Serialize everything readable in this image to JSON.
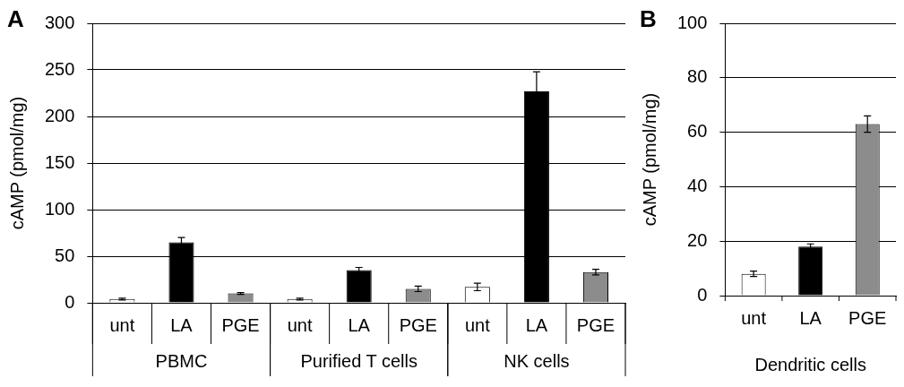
{
  "chart_data": [
    {
      "type": "bar",
      "title": "A",
      "ylabel": "cAMP (pmol/mg)",
      "categories": [
        "unt",
        "LA",
        "PGE",
        "unt",
        "LA",
        "PGE",
        "unt",
        "LA",
        "PGE"
      ],
      "values": [
        4,
        65,
        10,
        4,
        35,
        15,
        17,
        227,
        33
      ],
      "errors": [
        1,
        5,
        1,
        1,
        3,
        3,
        4,
        21,
        3
      ],
      "colors": [
        "#ffffff",
        "#000000",
        "#8c8c8c",
        "#ffffff",
        "#000000",
        "#8c8c8c",
        "#ffffff",
        "#000000",
        "#8c8c8c"
      ],
      "ylim": [
        0,
        300
      ],
      "yticks": [
        0,
        50,
        100,
        150,
        200,
        250,
        300
      ],
      "grid": "y",
      "annotations": [
        "PBMC",
        "Purified T cells",
        "NK cells"
      ]
    },
    {
      "type": "bar",
      "title": "B",
      "ylabel": "cAMP (pmol/mg)",
      "xlabel": "Dendritic cells",
      "categories": [
        "unt",
        "LA",
        "PGE"
      ],
      "values": [
        8,
        18,
        63
      ],
      "errors": [
        1,
        1,
        3
      ],
      "colors": [
        "#ffffff",
        "#000000",
        "#8c8c8c"
      ],
      "ylim": [
        0,
        100
      ],
      "yticks": [
        0,
        20,
        40,
        60,
        80,
        100
      ],
      "grid": "y"
    }
  ]
}
